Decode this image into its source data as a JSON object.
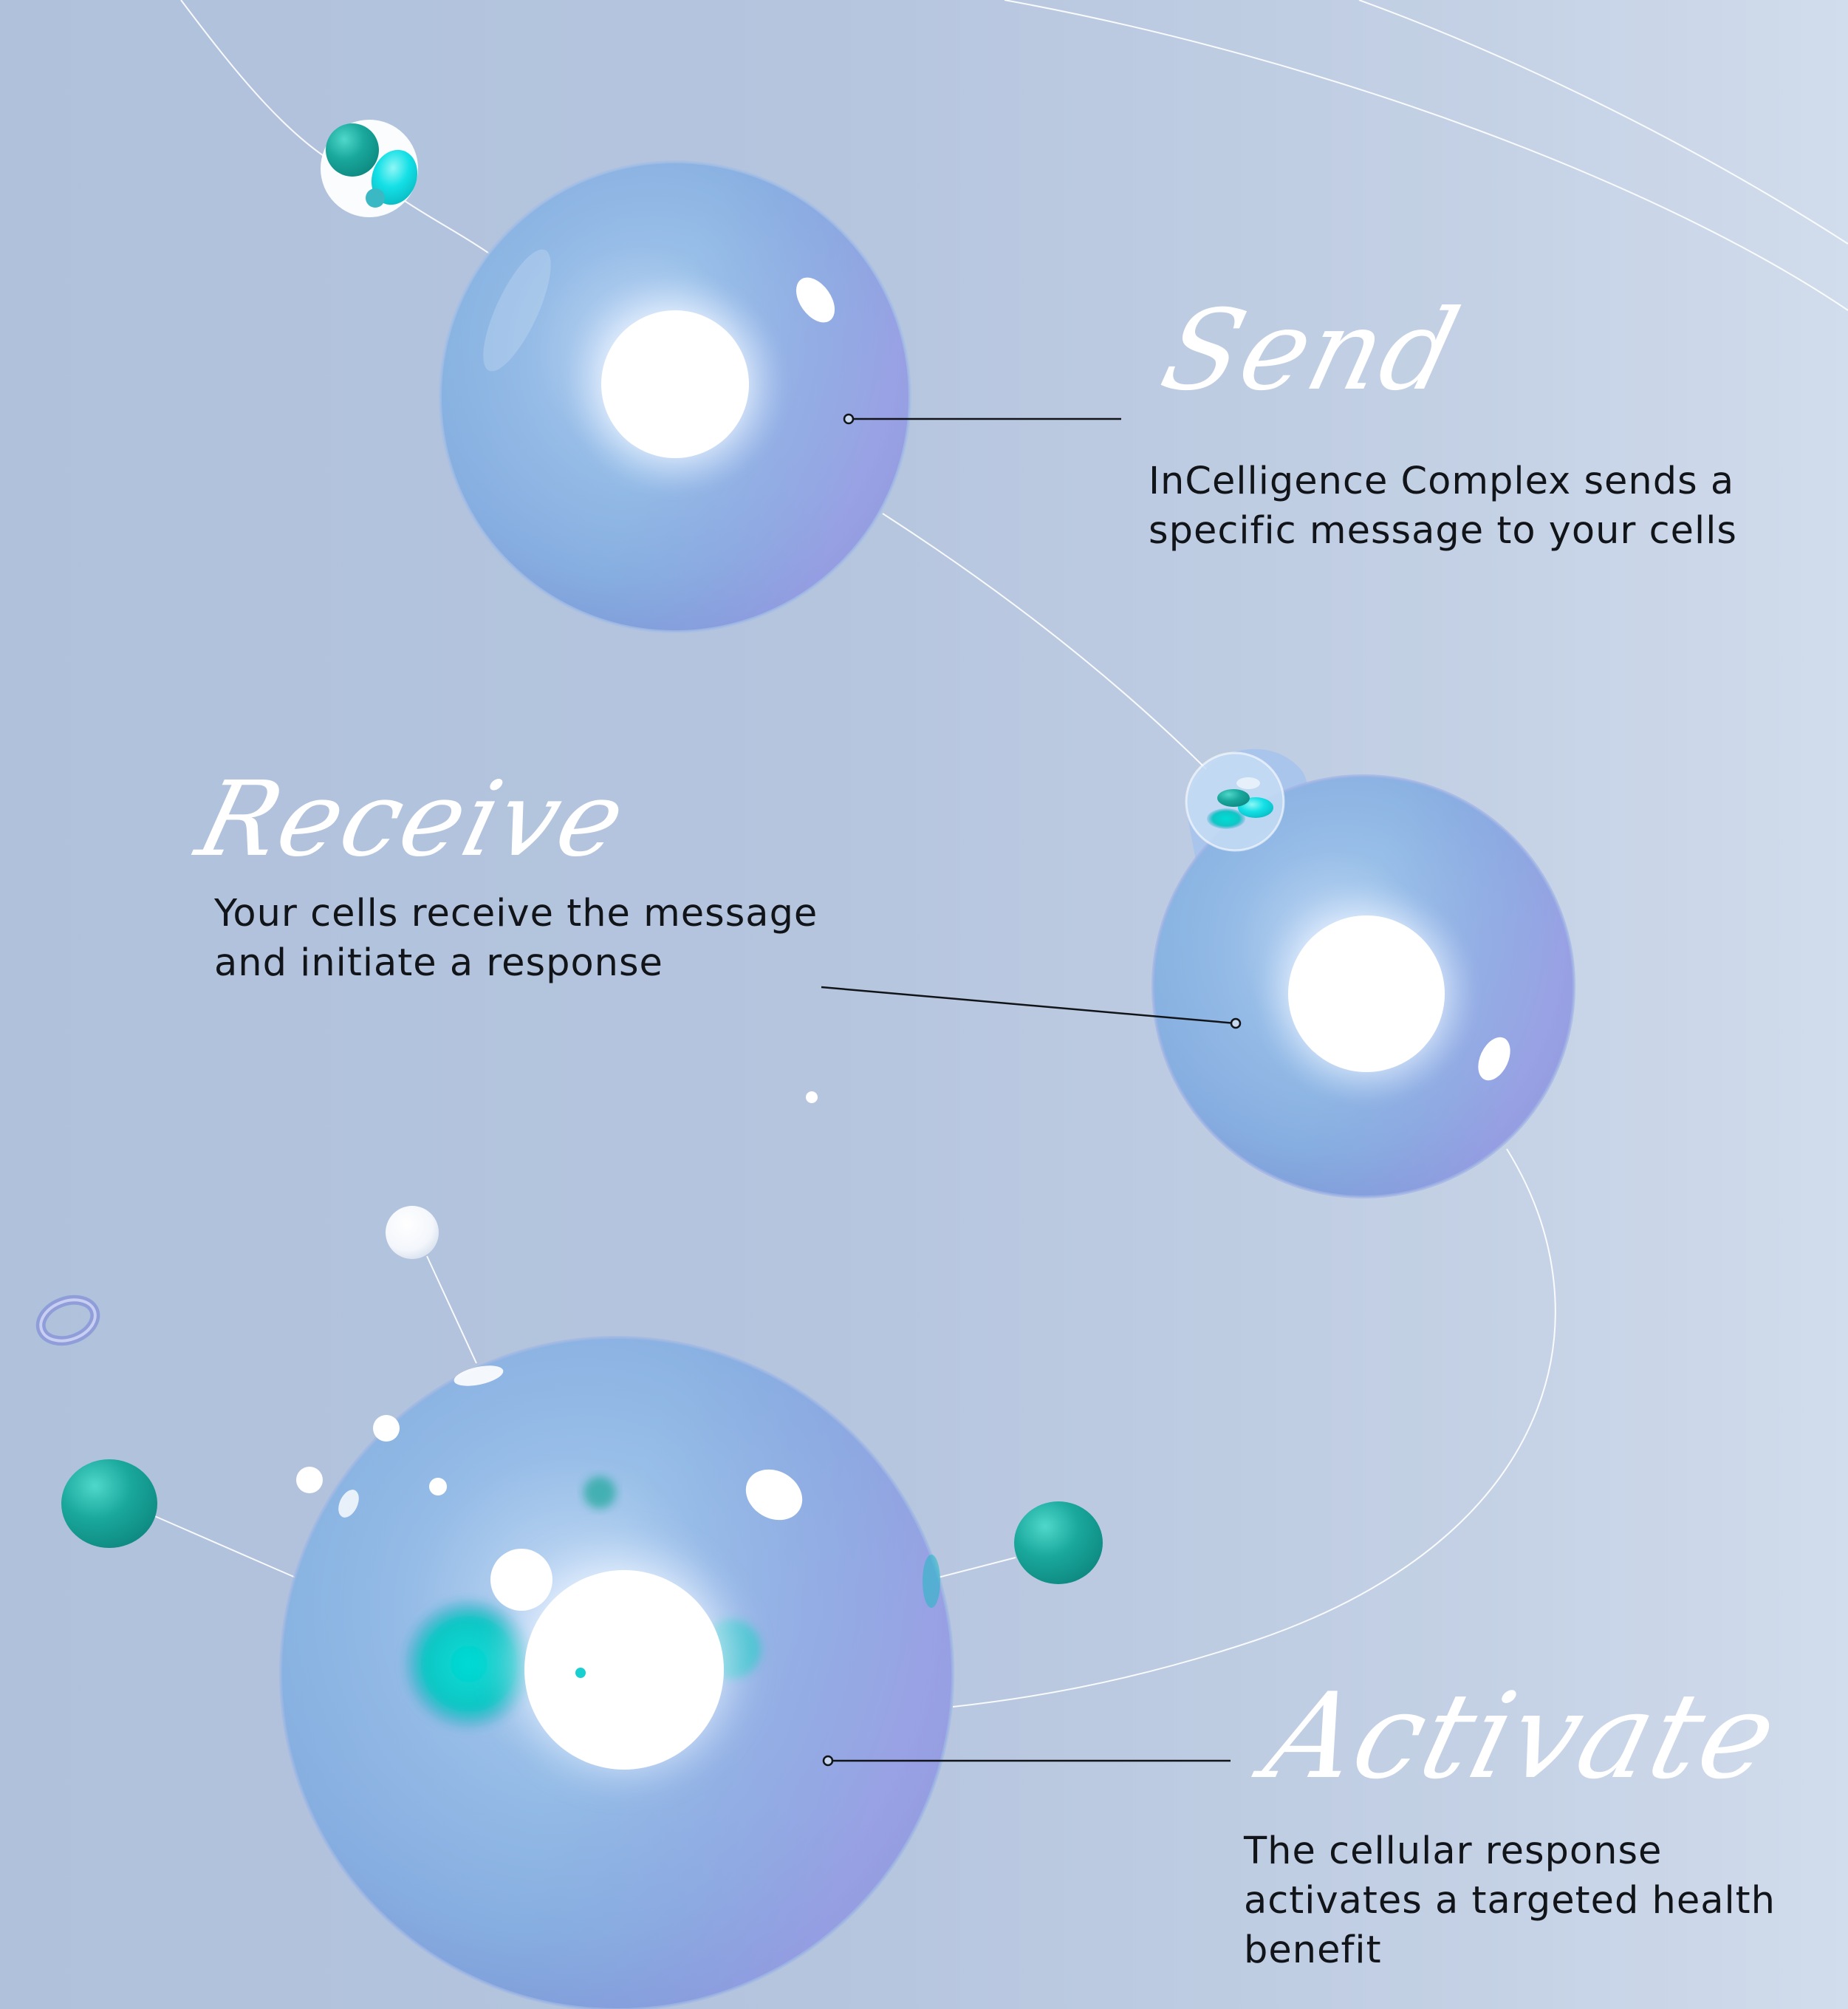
{
  "steps": [
    {
      "title": "Send",
      "lines": [
        "InCelligence Complex sends a",
        "specific message to your cells"
      ]
    },
    {
      "title": "Receive",
      "lines": [
        "Your cells receive the message",
        "and initiate a response"
      ]
    },
    {
      "title": "Activate",
      "lines": [
        "The cellular response",
        "activates a targeted health",
        "benefit"
      ]
    }
  ],
  "colors": {
    "background_left": "#b0c1dc",
    "background_right": "#d1dcec",
    "sphere_blue": "#8ab4e2",
    "sphere_violet": "#9e9ee6",
    "teal": "#1aa89c",
    "cyan": "#14e0e6",
    "text": "#111418",
    "script_title": "#ffffff"
  }
}
